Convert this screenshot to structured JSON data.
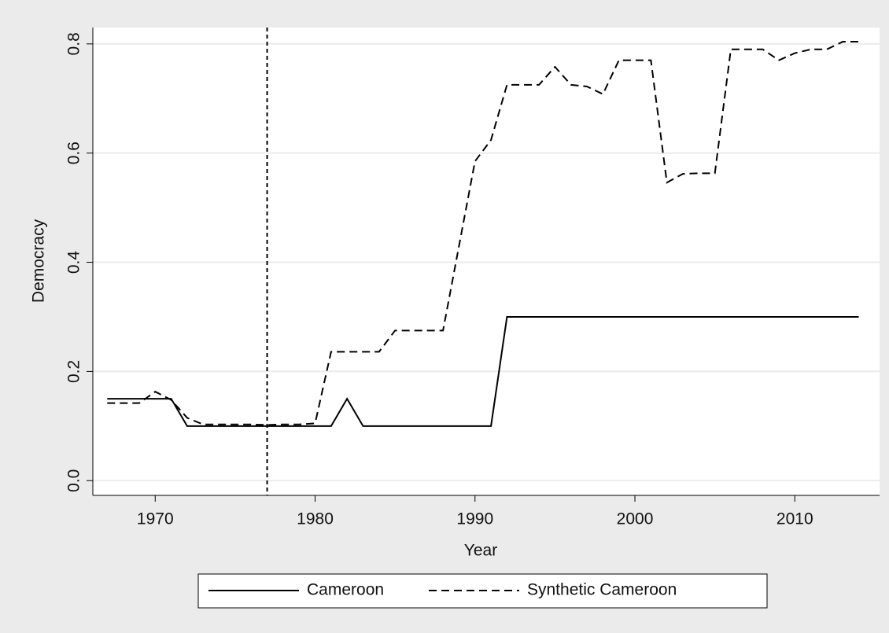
{
  "chart_data": {
    "type": "line",
    "x_label": "Year",
    "y_label": "Democracy",
    "x": [
      1967,
      1968,
      1969,
      1970,
      1971,
      1972,
      1973,
      1974,
      1975,
      1976,
      1977,
      1978,
      1979,
      1980,
      1981,
      1982,
      1983,
      1984,
      1985,
      1986,
      1987,
      1988,
      1989,
      1990,
      1991,
      1992,
      1993,
      1994,
      1995,
      1996,
      1997,
      1998,
      1999,
      2000,
      2001,
      2002,
      2003,
      2004,
      2005,
      2006,
      2007,
      2008,
      2009,
      2010,
      2011,
      2012,
      2013,
      2014
    ],
    "series": [
      {
        "name": "Cameroon",
        "color": "#000000",
        "style": "solid",
        "values": [
          0.15,
          0.15,
          0.15,
          0.15,
          0.15,
          0.1,
          0.1,
          0.1,
          0.1,
          0.1,
          0.1,
          0.1,
          0.1,
          0.1,
          0.1,
          0.15,
          0.1,
          0.1,
          0.1,
          0.1,
          0.1,
          0.1,
          0.1,
          0.1,
          0.1,
          0.3,
          0.3,
          0.3,
          0.3,
          0.3,
          0.3,
          0.3,
          0.3,
          0.3,
          0.3,
          0.3,
          0.3,
          0.3,
          0.3,
          0.3,
          0.3,
          0.3,
          0.3,
          0.3,
          0.3,
          0.3,
          0.3,
          0.3
        ]
      },
      {
        "name": "Synthetic Cameroon",
        "color": "#000000",
        "style": "dashed",
        "values": [
          0.142,
          0.142,
          0.142,
          0.163,
          0.148,
          0.115,
          0.103,
          0.103,
          0.103,
          0.103,
          0.102,
          0.103,
          0.103,
          0.105,
          0.236,
          0.236,
          0.236,
          0.236,
          0.275,
          0.275,
          0.275,
          0.275,
          0.43,
          0.585,
          0.624,
          0.725,
          0.725,
          0.725,
          0.758,
          0.725,
          0.722,
          0.708,
          0.77,
          0.77,
          0.77,
          0.546,
          0.562,
          0.563,
          0.563,
          0.79,
          0.79,
          0.79,
          0.77,
          0.783,
          0.79,
          0.79,
          0.804,
          0.804
        ]
      }
    ],
    "xline": 1977,
    "xlim": [
      1966.1,
      2015.3
    ],
    "ylim": [
      -0.027,
      0.83
    ],
    "xticks": [
      1970,
      1980,
      1990,
      2000,
      2010
    ],
    "yticks": [
      {
        "value": 0,
        "label": "0.0"
      },
      0.2,
      0.4,
      0.6,
      0.8
    ],
    "grid": true,
    "legend": "bottom"
  }
}
